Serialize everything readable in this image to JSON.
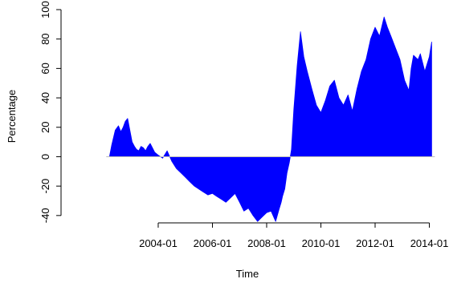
{
  "chart_data": {
    "type": "area",
    "title": "",
    "xlabel": "Time",
    "ylabel": "Percentage",
    "xlim": [
      "2000-06-01",
      "2014-03-01"
    ],
    "ylim": [
      -45,
      100
    ],
    "x_ticks": [
      "2004-01",
      "2006-01",
      "2008-01",
      "2010-01",
      "2012-01",
      "2014-01"
    ],
    "y_ticks": [
      -40,
      -20,
      0,
      20,
      40,
      60,
      80,
      100
    ],
    "fill_color": "#0000ff",
    "baseline_color": "#bebebe",
    "baseline": 0,
    "grid": false,
    "legend": "none",
    "x": [
      "2002-03-15",
      "2002-04-15",
      "2002-06-01",
      "2002-07-15",
      "2002-08-15",
      "2002-09-15",
      "2002-10-15",
      "2002-11-15",
      "2002-12-15",
      "2003-01-15",
      "2003-02-15",
      "2003-03-15",
      "2003-04-15",
      "2003-05-15",
      "2003-06-15",
      "2003-07-15",
      "2003-08-15",
      "2003-09-15",
      "2003-10-15",
      "2003-11-15",
      "2004-01-01",
      "2004-03-01",
      "2004-05-01",
      "2004-07-01",
      "2004-09-01",
      "2004-11-01",
      "2005-01-01",
      "2005-03-01",
      "2005-05-01",
      "2005-07-01",
      "2005-09-01",
      "2005-11-01",
      "2006-01-01",
      "2006-03-01",
      "2006-05-01",
      "2006-07-01",
      "2006-09-01",
      "2006-11-01",
      "2007-01-01",
      "2007-03-01",
      "2007-05-01",
      "2007-07-01",
      "2007-09-01",
      "2007-11-01",
      "2008-01-01",
      "2008-03-01",
      "2008-05-01",
      "2008-06-15",
      "2008-07-15",
      "2008-08-01",
      "2008-09-01",
      "2008-09-15",
      "2008-10-01",
      "2008-11-01",
      "2008-12-01",
      "2009-01-01",
      "2009-02-15",
      "2009-04-01",
      "2009-05-15",
      "2009-07-01",
      "2009-09-01",
      "2009-11-01",
      "2010-01-01",
      "2010-03-01",
      "2010-05-01",
      "2010-07-01",
      "2010-09-01",
      "2010-11-01",
      "2011-01-01",
      "2011-03-01",
      "2011-05-01",
      "2011-07-01",
      "2011-09-01",
      "2011-11-01",
      "2012-01-01",
      "2012-03-01",
      "2012-05-01",
      "2012-06-15",
      "2012-08-01",
      "2012-10-01",
      "2012-12-01",
      "2013-02-01",
      "2013-04-01",
      "2013-05-01",
      "2013-06-01",
      "2013-08-01",
      "2013-09-01",
      "2013-11-01",
      "2014-01-01",
      "2014-02-01"
    ],
    "values": [
      0,
      8,
      18,
      21,
      17,
      20,
      24,
      26,
      18,
      10,
      7,
      5,
      4,
      7,
      6,
      4,
      7,
      9,
      6,
      3,
      1,
      -1,
      4,
      -3,
      -8,
      -11,
      -14,
      -17,
      -20,
      -22,
      -24,
      -26,
      -25,
      -27,
      -29,
      -31,
      -28,
      -25,
      -31,
      -37,
      -35,
      -40,
      -44,
      -41,
      -38,
      -37,
      -44,
      -36,
      -31,
      -27,
      -22,
      -17,
      -11,
      -4,
      5,
      32,
      62,
      85,
      68,
      58,
      46,
      35,
      30,
      38,
      48,
      52,
      40,
      35,
      42,
      31,
      46,
      58,
      66,
      80,
      88,
      82,
      95,
      88,
      82,
      74,
      66,
      52,
      45,
      60,
      69,
      66,
      70,
      58,
      68,
      78
    ]
  }
}
